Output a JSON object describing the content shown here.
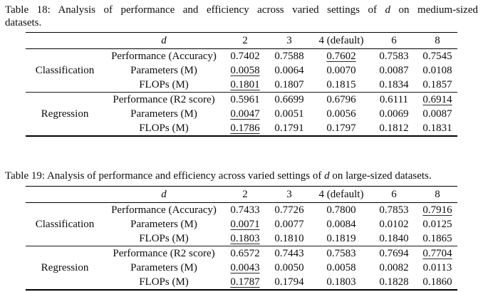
{
  "page": {
    "kind": "academic-paper-table-pair",
    "background_color": "#ffffff",
    "text_color": "#111111",
    "rule_color": "#000000"
  },
  "tables": [
    {
      "id": "table-18",
      "caption": {
        "full_text": "Table 18: Analysis of performance and efficiency across varied settings of d on medium-sized datasets.",
        "lines": [
          [
            {
              "t": "Table 18:  Analysis of performance and efficiency across varied settings of "
            },
            {
              "t": "d",
              "i": true
            },
            {
              "t": " on medium-sized"
            }
          ],
          [
            {
              "t": "datasets."
            }
          ]
        ]
      },
      "header": {
        "var": "d",
        "cols": [
          "2",
          "3",
          "4 (default)",
          "6",
          "8"
        ]
      },
      "groups": [
        {
          "label": "Classification",
          "rows": [
            {
              "metric": "Performance (Accuracy)",
              "values": [
                "0.7402",
                "0.7588",
                "0.7602",
                "0.7583",
                "0.7545"
              ],
              "underline": [
                2
              ]
            },
            {
              "metric": "Parameters (M)",
              "values": [
                "0.0058",
                "0.0064",
                "0.0070",
                "0.0087",
                "0.0108"
              ],
              "underline": [
                0
              ]
            },
            {
              "metric": "FLOPs (M)",
              "values": [
                "0.1801",
                "0.1807",
                "0.1815",
                "0.1834",
                "0.1857"
              ],
              "underline": [
                0
              ]
            }
          ]
        },
        {
          "label": "Regression",
          "rows": [
            {
              "metric": "Performance (R2 score)",
              "values": [
                "0.5961",
                "0.6699",
                "0.6796",
                "0.6111",
                "0.6914"
              ],
              "underline": [
                4
              ]
            },
            {
              "metric": "Parameters (M)",
              "values": [
                "0.0047",
                "0.0051",
                "0.0056",
                "0.0069",
                "0.0087"
              ],
              "underline": [
                0
              ]
            },
            {
              "metric": "FLOPs (M)",
              "values": [
                "0.1786",
                "0.1791",
                "0.1797",
                "0.1812",
                "0.1831"
              ],
              "underline": [
                0
              ]
            }
          ]
        }
      ]
    },
    {
      "id": "table-19",
      "caption": {
        "full_text": "Table 19: Analysis of performance and efficiency across varied settings of d on large-sized datasets.",
        "lines": [
          [
            {
              "t": "Table 19: Analysis of performance and efficiency across varied settings of "
            },
            {
              "t": "d",
              "i": true
            },
            {
              "t": " on large-sized datasets."
            }
          ]
        ]
      },
      "header": {
        "var": "d",
        "cols": [
          "2",
          "3",
          "4 (default)",
          "6",
          "8"
        ]
      },
      "groups": [
        {
          "label": "Classification",
          "rows": [
            {
              "metric": "Performance (Accuracy)",
              "values": [
                "0.7433",
                "0.7726",
                "0.7800",
                "0.7853",
                "0.7916"
              ],
              "underline": [
                4
              ]
            },
            {
              "metric": "Parameters (M)",
              "values": [
                "0.0071",
                "0.0077",
                "0.0084",
                "0.0102",
                "0.0125"
              ],
              "underline": [
                0
              ]
            },
            {
              "metric": "FLOPs (M)",
              "values": [
                "0.1803",
                "0.1810",
                "0.1819",
                "0.1840",
                "0.1865"
              ],
              "underline": [
                0
              ]
            }
          ]
        },
        {
          "label": "Regression",
          "rows": [
            {
              "metric": "Performance (R2 score)",
              "values": [
                "0.6572",
                "0.7443",
                "0.7583",
                "0.7694",
                "0.7704"
              ],
              "underline": [
                4
              ]
            },
            {
              "metric": "Parameters (M)",
              "values": [
                "0.0043",
                "0.0050",
                "0.0058",
                "0.0082",
                "0.0113"
              ],
              "underline": [
                0
              ]
            },
            {
              "metric": "FLOPs (M)",
              "values": [
                "0.1787",
                "0.1794",
                "0.1803",
                "0.1828",
                "0.1860"
              ],
              "underline": [
                0
              ]
            }
          ]
        }
      ]
    }
  ]
}
